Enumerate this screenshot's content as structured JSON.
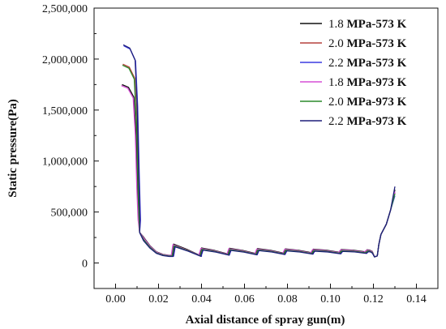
{
  "chart_data": {
    "type": "line",
    "xlabel": "Axial distance of spray gun(m)",
    "ylabel": "Static pressure(Pa)",
    "xlim": [
      -0.01,
      0.15
    ],
    "ylim": [
      -250000,
      2500000
    ],
    "xticks": [
      0.0,
      0.02,
      0.04,
      0.06,
      0.08,
      0.1,
      0.12,
      0.14
    ],
    "xtick_labels": [
      "0.00",
      "0.02",
      "0.04",
      "0.06",
      "0.08",
      "0.10",
      "0.12",
      "0.14"
    ],
    "yticks": [
      0,
      500000,
      1000000,
      1500000,
      2000000,
      2500000
    ],
    "ytick_labels": [
      "0",
      "500,000",
      "1,000,000",
      "1,500,000",
      "2,000,000",
      "2,500,000"
    ],
    "grid": false,
    "legend_position": "top-right",
    "series": [
      {
        "name": "1.8 MPa-573 K",
        "color": "#111111",
        "peak": 1750000,
        "bump": 1.0,
        "outlet": 720000,
        "xshift": 0.0
      },
      {
        "name": "2.0 MPa-573 K",
        "color": "#b5413d",
        "peak": 1950000,
        "bump": 0.93,
        "outlet": 690000,
        "xshift": 0.0004
      },
      {
        "name": "2.2 MPa-573 K",
        "color": "#3a3ae0",
        "peak": 2130000,
        "bump": 0.88,
        "outlet": 660000,
        "xshift": 0.0008
      },
      {
        "name": "1.8 MPa-973 K",
        "color": "#d64fd6",
        "peak": 1740000,
        "bump": 0.97,
        "outlet": 700000,
        "xshift": -0.0003
      },
      {
        "name": "2.0 MPa-973 K",
        "color": "#2a8a2a",
        "peak": 1940000,
        "bump": 0.91,
        "outlet": 680000,
        "xshift": 0.0002
      },
      {
        "name": "2.2 MPa-973 K",
        "color": "#1e1e7a",
        "peak": 2140000,
        "bump": 0.86,
        "outlet": 750000,
        "xshift": 0.0006
      }
    ]
  }
}
